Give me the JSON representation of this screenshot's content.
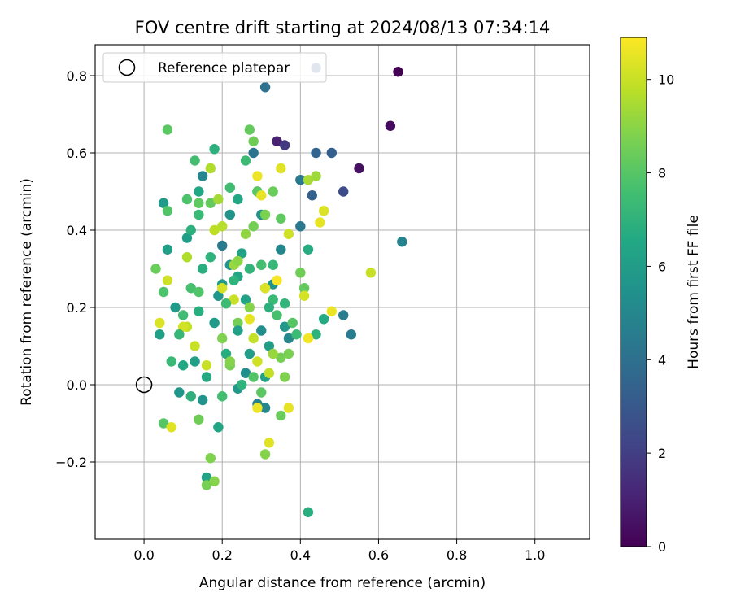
{
  "chart_data": {
    "type": "scatter",
    "title": "FOV centre drift starting at 2024/08/13 07:34:14",
    "xlabel": "Angular distance from reference (arcmin)",
    "ylabel": "Rotation from reference (arcmin)",
    "xlim": [
      -0.125,
      1.14
    ],
    "ylim": [
      -0.4,
      0.88
    ],
    "xticks": [
      "0.0",
      "0.2",
      "0.4",
      "0.6",
      "0.8",
      "1.0"
    ],
    "yticks": [
      "−0.2",
      "0.0",
      "0.2",
      "0.4",
      "0.6",
      "0.8"
    ],
    "grid": true,
    "legend": {
      "label": "Reference platepar",
      "position": "top-left"
    },
    "reference_point": {
      "x": 0.0,
      "y": 0.0
    },
    "colorbar": {
      "label": "Hours from first FF file",
      "colormap": "viridis",
      "range": [
        0,
        10.9
      ],
      "ticks": [
        "0",
        "2",
        "4",
        "6",
        "8",
        "10"
      ]
    },
    "points": [
      [
        0.65,
        0.81,
        0.0
      ],
      [
        0.63,
        0.67,
        0.3
      ],
      [
        0.55,
        0.56,
        0.5
      ],
      [
        0.34,
        0.63,
        1.0
      ],
      [
        0.36,
        0.62,
        1.8
      ],
      [
        0.51,
        0.5,
        2.5
      ],
      [
        0.44,
        0.82,
        3.0
      ],
      [
        0.48,
        0.6,
        3.3
      ],
      [
        0.44,
        0.6,
        3.5
      ],
      [
        0.43,
        0.49,
        3.4
      ],
      [
        0.31,
        0.77,
        4.0
      ],
      [
        0.66,
        0.37,
        4.8
      ],
      [
        0.4,
        0.53,
        4.4
      ],
      [
        0.4,
        0.41,
        4.3
      ],
      [
        0.53,
        0.13,
        4.5
      ],
      [
        0.51,
        0.18,
        4.6
      ],
      [
        0.28,
        0.6,
        4.2
      ],
      [
        0.29,
        0.5,
        5.2
      ],
      [
        0.3,
        0.44,
        5.5
      ],
      [
        0.35,
        0.35,
        5.0
      ],
      [
        0.31,
        0.25,
        4.7
      ],
      [
        0.33,
        0.26,
        5.6
      ],
      [
        0.36,
        0.15,
        5.8
      ],
      [
        0.37,
        0.12,
        5.1
      ],
      [
        0.3,
        0.14,
        5.3
      ],
      [
        0.32,
        0.1,
        6.0
      ],
      [
        0.29,
        -0.05,
        4.9
      ],
      [
        0.31,
        -0.06,
        5.0
      ],
      [
        0.31,
        0.02,
        6.2
      ],
      [
        0.2,
        0.36,
        4.5
      ],
      [
        0.22,
        0.44,
        5.6
      ],
      [
        0.15,
        0.54,
        5.0
      ],
      [
        0.14,
        0.5,
        6.5
      ],
      [
        0.05,
        0.47,
        5.9
      ],
      [
        0.06,
        0.35,
        6.1
      ],
      [
        0.11,
        0.38,
        6.0
      ],
      [
        0.08,
        0.2,
        5.9
      ],
      [
        0.04,
        0.13,
        6.1
      ],
      [
        0.09,
        -0.02,
        5.7
      ],
      [
        0.15,
        -0.04,
        5.6
      ],
      [
        0.16,
        -0.24,
        6.3
      ],
      [
        0.19,
        -0.11,
        6.4
      ],
      [
        0.24,
        -0.01,
        5.8
      ],
      [
        0.26,
        0.03,
        5.4
      ],
      [
        0.16,
        0.02,
        6.6
      ],
      [
        0.21,
        0.08,
        6.7
      ],
      [
        0.19,
        0.23,
        5.7
      ],
      [
        0.2,
        0.26,
        5.9
      ],
      [
        0.24,
        0.28,
        6.4
      ],
      [
        0.26,
        0.22,
        6.3
      ],
      [
        0.22,
        0.31,
        5.5
      ],
      [
        0.25,
        0.34,
        6.2
      ],
      [
        0.18,
        0.61,
        6.9
      ],
      [
        0.24,
        0.48,
        6.5
      ],
      [
        0.42,
        0.35,
        6.7
      ],
      [
        0.46,
        0.17,
        6.6
      ],
      [
        0.44,
        0.13,
        7.0
      ],
      [
        0.13,
        0.58,
        7.6
      ],
      [
        0.11,
        0.48,
        7.8
      ],
      [
        0.06,
        0.66,
        8.1
      ],
      [
        0.06,
        0.45,
        7.9
      ],
      [
        0.14,
        0.47,
        8.2
      ],
      [
        0.17,
        0.47,
        8.3
      ],
      [
        0.12,
        0.25,
        7.7
      ],
      [
        0.14,
        0.24,
        7.9
      ],
      [
        0.1,
        0.18,
        7.5
      ],
      [
        0.07,
        0.06,
        7.3
      ],
      [
        0.03,
        0.3,
        8.4
      ],
      [
        0.05,
        0.24,
        7.8
      ],
      [
        0.05,
        -0.1,
        8.0
      ],
      [
        0.14,
        -0.09,
        8.5
      ],
      [
        0.17,
        -0.19,
        8.8
      ],
      [
        0.16,
        -0.26,
        8.6
      ],
      [
        0.18,
        -0.25,
        8.9
      ],
      [
        0.22,
        0.05,
        8.7
      ],
      [
        0.24,
        0.16,
        8.6
      ],
      [
        0.27,
        0.2,
        8.9
      ],
      [
        0.28,
        0.41,
        8.6
      ],
      [
        0.29,
        0.5,
        8.1
      ],
      [
        0.27,
        0.66,
        8.3
      ],
      [
        0.28,
        0.63,
        8.5
      ],
      [
        0.31,
        0.44,
        8.7
      ],
      [
        0.33,
        0.5,
        8.4
      ],
      [
        0.35,
        0.43,
        8.2
      ],
      [
        0.35,
        0.07,
        8.6
      ],
      [
        0.36,
        0.02,
        8.8
      ],
      [
        0.35,
        -0.08,
        8.4
      ],
      [
        0.31,
        -0.18,
        8.9
      ],
      [
        0.37,
        0.08,
        8.7
      ],
      [
        0.4,
        0.29,
        8.5
      ],
      [
        0.41,
        0.25,
        8.3
      ],
      [
        0.2,
        0.12,
        8.8
      ],
      [
        0.22,
        0.06,
        8.9
      ],
      [
        0.23,
        0.31,
        9.2
      ],
      [
        0.24,
        0.32,
        9.0
      ],
      [
        0.26,
        0.39,
        9.1
      ],
      [
        0.17,
        0.56,
        9.6
      ],
      [
        0.19,
        0.48,
        9.4
      ],
      [
        0.2,
        0.41,
        9.7
      ],
      [
        0.18,
        0.4,
        9.8
      ],
      [
        0.11,
        0.33,
        9.6
      ],
      [
        0.13,
        0.1,
        10.0
      ],
      [
        0.11,
        0.15,
        9.9
      ],
      [
        0.1,
        0.15,
        10.2
      ],
      [
        0.06,
        0.27,
        10.1
      ],
      [
        0.04,
        0.16,
        10.3
      ],
      [
        0.07,
        -0.11,
        10.4
      ],
      [
        0.16,
        0.05,
        10.0
      ],
      [
        0.2,
        0.25,
        10.2
      ],
      [
        0.23,
        0.22,
        10.0
      ],
      [
        0.27,
        0.17,
        10.5
      ],
      [
        0.28,
        0.12,
        9.9
      ],
      [
        0.29,
        0.06,
        10.1
      ],
      [
        0.29,
        -0.06,
        10.6
      ],
      [
        0.32,
        -0.15,
        10.4
      ],
      [
        0.31,
        0.25,
        10.3
      ],
      [
        0.3,
        0.49,
        10.5
      ],
      [
        0.29,
        0.54,
        10.6
      ],
      [
        0.34,
        0.27,
        10.8
      ],
      [
        0.35,
        0.56,
        10.4
      ],
      [
        0.37,
        0.39,
        10.1
      ],
      [
        0.41,
        0.23,
        10.2
      ],
      [
        0.42,
        0.12,
        10.7
      ],
      [
        0.45,
        0.42,
        10.5
      ],
      [
        0.46,
        0.45,
        10.3
      ],
      [
        0.48,
        0.19,
        10.6
      ],
      [
        0.58,
        0.29,
        10.0
      ],
      [
        0.37,
        -0.06,
        10.5
      ],
      [
        0.42,
        0.53,
        9.5
      ],
      [
        0.44,
        0.54,
        9.3
      ],
      [
        0.42,
        -0.33,
        6.8
      ],
      [
        0.33,
        0.08,
        9.2
      ],
      [
        0.32,
        0.03,
        9.9
      ],
      [
        0.23,
        0.27,
        7.0
      ],
      [
        0.21,
        0.21,
        7.4
      ],
      [
        0.27,
        0.3,
        7.1
      ],
      [
        0.3,
        0.31,
        7.6
      ],
      [
        0.33,
        0.31,
        7.2
      ],
      [
        0.15,
        0.3,
        6.8
      ],
      [
        0.17,
        0.33,
        7.0
      ],
      [
        0.12,
        0.4,
        6.9
      ],
      [
        0.14,
        0.44,
        7.3
      ],
      [
        0.22,
        0.51,
        7.5
      ],
      [
        0.26,
        0.58,
        7.4
      ],
      [
        0.24,
        0.14,
        6.2
      ],
      [
        0.27,
        0.08,
        6.0
      ],
      [
        0.18,
        0.16,
        5.9
      ],
      [
        0.14,
        0.19,
        6.8
      ],
      [
        0.1,
        0.05,
        6.5
      ],
      [
        0.13,
        0.06,
        6.1
      ],
      [
        0.12,
        -0.03,
        6.9
      ],
      [
        0.09,
        0.13,
        7.2
      ],
      [
        0.2,
        -0.03,
        7.6
      ],
      [
        0.25,
        0.0,
        7.0
      ],
      [
        0.28,
        0.02,
        7.9
      ],
      [
        0.3,
        -0.02,
        8.1
      ],
      [
        0.33,
        0.22,
        7.3
      ],
      [
        0.34,
        0.18,
        7.7
      ],
      [
        0.36,
        0.21,
        7.1
      ],
      [
        0.32,
        0.2,
        6.9
      ],
      [
        0.39,
        0.13,
        7.4
      ],
      [
        0.38,
        0.16,
        8.0
      ]
    ]
  }
}
